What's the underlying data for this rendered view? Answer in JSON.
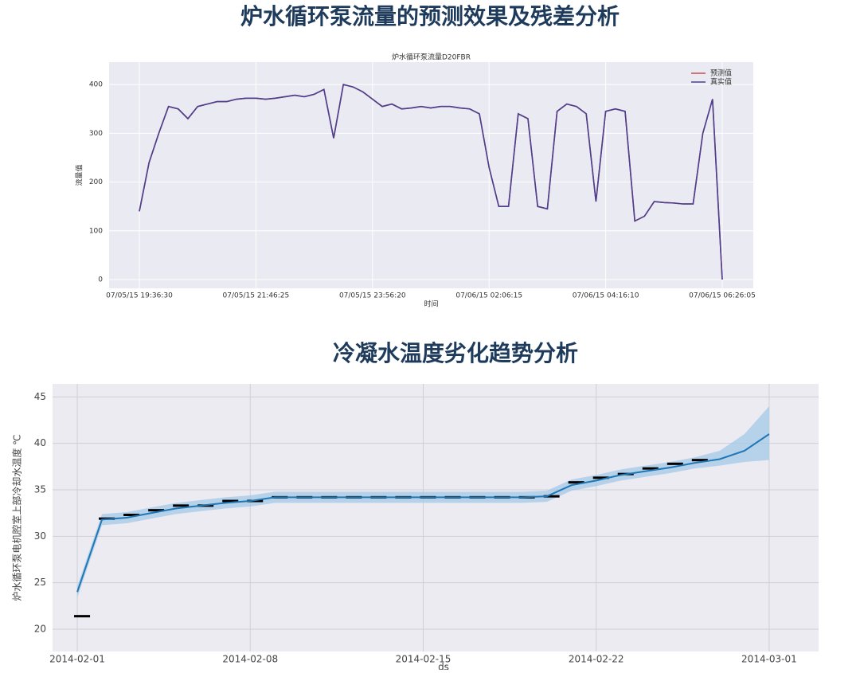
{
  "headings": [
    "炉水循环泵流量的预测效果及残差分析",
    "冷凝水温度劣化趋势分析"
  ],
  "chart_data": [
    {
      "type": "line",
      "title": "炉水循环泵流量D20FBR",
      "x_label": "时间",
      "y_label": "流量值",
      "categories": [
        "07/05/15 19:36:30",
        null,
        null,
        null,
        null,
        null,
        null,
        null,
        null,
        null,
        null,
        null,
        "07/05/15 21:46:25",
        null,
        null,
        null,
        null,
        null,
        null,
        null,
        null,
        null,
        null,
        null,
        "07/05/15 23:56:20",
        null,
        null,
        null,
        null,
        null,
        null,
        null,
        null,
        null,
        null,
        null,
        "07/06/15 02:06:15",
        null,
        null,
        null,
        null,
        null,
        null,
        null,
        null,
        null,
        null,
        null,
        "07/06/15 04:16:10",
        null,
        null,
        null,
        null,
        null,
        null,
        null,
        null,
        null,
        null,
        null,
        "07/06/15 06:26:05"
      ],
      "series": [
        {
          "name": "预测值",
          "color": "#c44e52",
          "values": [
            140,
            240,
            300,
            355,
            350,
            330,
            355,
            360,
            365,
            365,
            370,
            372,
            372,
            370,
            372,
            375,
            378,
            375,
            380,
            390,
            290,
            400,
            395,
            385,
            370,
            355,
            360,
            350,
            352,
            355,
            352,
            355,
            355,
            352,
            350,
            340,
            230,
            150,
            150,
            340,
            330,
            150,
            145,
            345,
            360,
            355,
            340,
            160,
            345,
            350,
            345,
            120,
            130,
            160,
            158,
            157,
            155,
            155,
            300,
            370,
            0
          ]
        },
        {
          "name": "真实值",
          "color": "#4c3f8f",
          "values": [
            140,
            240,
            300,
            355,
            350,
            330,
            355,
            360,
            365,
            365,
            370,
            372,
            372,
            370,
            372,
            375,
            378,
            375,
            380,
            390,
            290,
            400,
            395,
            385,
            370,
            355,
            360,
            350,
            352,
            355,
            352,
            355,
            355,
            352,
            350,
            340,
            230,
            150,
            150,
            340,
            330,
            150,
            145,
            345,
            360,
            355,
            340,
            160,
            345,
            350,
            345,
            120,
            130,
            160,
            158,
            157,
            155,
            155,
            300,
            370,
            0
          ]
        }
      ],
      "ylim": [
        -18,
        446
      ],
      "yticks": [
        0,
        100,
        200,
        300,
        400
      ],
      "grid": true,
      "legend": "upper right"
    },
    {
      "type": "forecast",
      "x_label": "ds",
      "y_label": "炉水循环泵电机腔室上部冷却水温度 ℃",
      "x": [
        "2014-02-01",
        "2014-02-02",
        "2014-02-03",
        "2014-02-04",
        "2014-02-05",
        "2014-02-06",
        "2014-02-07",
        "2014-02-08",
        "2014-02-09",
        "2014-02-10",
        "2014-02-11",
        "2014-02-12",
        "2014-02-13",
        "2014-02-14",
        "2014-02-15",
        "2014-02-16",
        "2014-02-17",
        "2014-02-18",
        "2014-02-19",
        "2014-02-20",
        "2014-02-21",
        "2014-02-22",
        "2014-02-23",
        "2014-02-24",
        "2014-02-25",
        "2014-02-26",
        "2014-02-27",
        "2014-02-28",
        "2014-03-01"
      ],
      "values": [
        24,
        31.8,
        32,
        32.5,
        33,
        33.3,
        33.6,
        33.8,
        34.2,
        34.2,
        34.2,
        34.2,
        34.2,
        34.2,
        34.2,
        34.2,
        34.2,
        34.2,
        34.2,
        34.3,
        35.5,
        36,
        36.6,
        37,
        37.4,
        37.9,
        38.3,
        39.2,
        41
      ],
      "lower": [
        23.4,
        31.2,
        31.4,
        31.9,
        32.4,
        32.7,
        33,
        33.2,
        33.6,
        33.6,
        33.6,
        33.6,
        33.6,
        33.6,
        33.6,
        33.6,
        33.6,
        33.6,
        33.6,
        33.7,
        34.9,
        35.4,
        36,
        36.4,
        36.8,
        37.3,
        37.6,
        38,
        38.2
      ],
      "upper": [
        24.6,
        32.4,
        32.6,
        33.1,
        33.6,
        33.9,
        34.2,
        34.4,
        34.8,
        34.8,
        34.8,
        34.8,
        34.8,
        34.8,
        34.8,
        34.8,
        34.8,
        34.8,
        34.8,
        34.9,
        36.1,
        36.6,
        37.2,
        37.6,
        38,
        38.5,
        39.2,
        41,
        44
      ],
      "observed": {
        "x": [
          "2014-02-01",
          "2014-02-02",
          "2014-02-03",
          "2014-02-04",
          "2014-02-05",
          "2014-02-06",
          "2014-02-07",
          "2014-02-08",
          "2014-02-09",
          "2014-02-10",
          "2014-02-11",
          "2014-02-12",
          "2014-02-13",
          "2014-02-14",
          "2014-02-15",
          "2014-02-16",
          "2014-02-17",
          "2014-02-18",
          "2014-02-19",
          "2014-02-20",
          "2014-02-21",
          "2014-02-22",
          "2014-02-23",
          "2014-02-24",
          "2014-02-25",
          "2014-02-26"
        ],
        "values": [
          21.4,
          31.9,
          32.3,
          32.8,
          33.3,
          33.3,
          33.8,
          33.8,
          34.2,
          34.2,
          34.2,
          34.2,
          34.2,
          34.2,
          34.2,
          34.2,
          34.2,
          34.2,
          34.2,
          34.3,
          35.8,
          36.3,
          36.7,
          37.3,
          37.8,
          38.2
        ]
      },
      "color": "#1f77b4",
      "band_color": "#9fc8e8",
      "observed_color": "#000000",
      "xlim": [
        "2014-01-31",
        "2014-03-03"
      ],
      "xticks": [
        "2014-02-01",
        "2014-02-08",
        "2014-02-15",
        "2014-02-22",
        "2014-03-01"
      ],
      "ylim": [
        17.6,
        46.4
      ],
      "yticks": [
        20,
        25,
        30,
        35,
        40,
        45
      ],
      "grid": true
    }
  ]
}
